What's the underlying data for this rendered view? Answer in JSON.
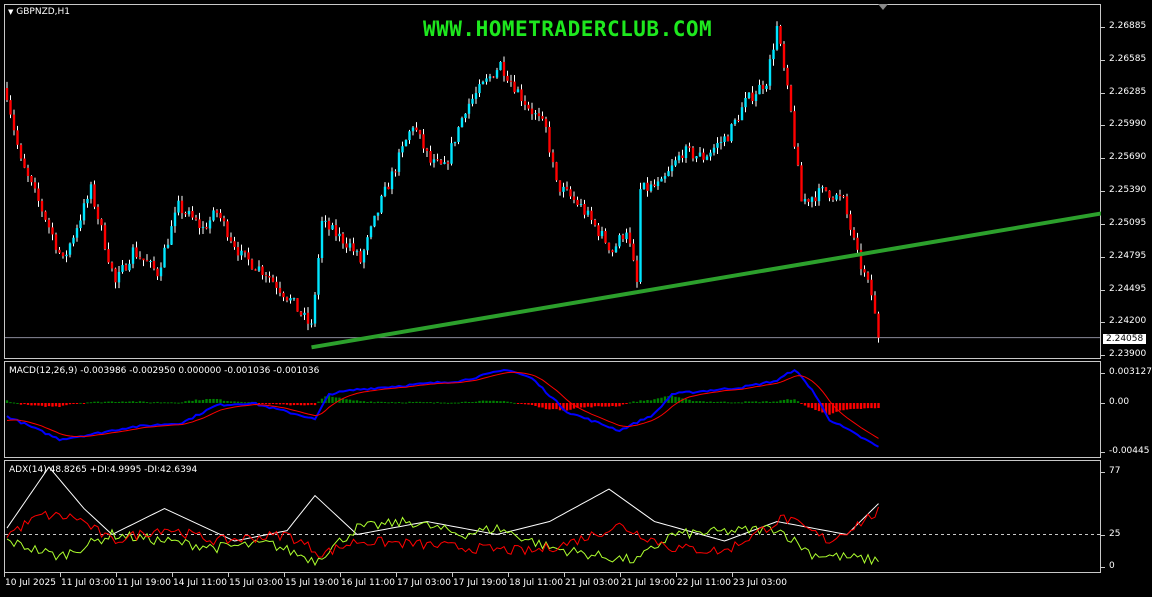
{
  "symbol_title": "GBPNZD,H1",
  "watermark": "WWW.HOMETRADERCLUB.COM",
  "colors": {
    "bull": "#00e5ff",
    "bear": "#ff0000",
    "trendline": "#2ca02c",
    "macd_main": "#0000ff",
    "macd_signal": "#ff0000",
    "hist_pos": "#008000",
    "hist_neg": "#ff0000",
    "adx": "#ffffff",
    "plus_di": "#adff2f",
    "minus_di": "#ff0000",
    "watermark": "#1ee81e"
  },
  "current_price": "2.24058",
  "price_axis": [
    "2.26885",
    "2.26585",
    "2.26285",
    "2.25990",
    "2.25690",
    "2.25390",
    "2.25095",
    "2.24795",
    "2.24495",
    "2.24200",
    "2.23900"
  ],
  "time_axis": [
    "10 Jul 2025",
    "11 Jul 03:00",
    "11 Jul 19:00",
    "14 Jul 11:00",
    "15 Jul 03:00",
    "15 Jul 19:00",
    "16 Jul 11:00",
    "17 Jul 03:00",
    "17 Jul 19:00",
    "18 Jul 11:00",
    "21 Jul 03:00",
    "21 Jul 19:00",
    "22 Jul 11:00",
    "23 Jul 03:00"
  ],
  "macd": {
    "label": "MACD(12,26,9) -0.003986 -0.002950 0.000000 -0.001036 -0.001036",
    "axis": [
      "0.003127",
      "0.00",
      "-0.00445"
    ]
  },
  "adx": {
    "label": "ADX(14) 48.8265 +DI:4.9995 -DI:42.6394",
    "axis": [
      "77",
      "25",
      "0"
    ]
  },
  "chart_data": {
    "type": "candlestick",
    "timeframe": "H1",
    "price_range": [
      2.239,
      2.26885
    ],
    "close_anchors": [
      [
        0,
        2.2628
      ],
      [
        4,
        2.2565
      ],
      [
        11,
        2.2515
      ],
      [
        16,
        2.2475
      ],
      [
        24,
        2.254
      ],
      [
        31,
        2.2455
      ],
      [
        36,
        2.2485
      ],
      [
        43,
        2.2465
      ],
      [
        49,
        2.2525
      ],
      [
        56,
        2.2505
      ],
      [
        60,
        2.252
      ],
      [
        67,
        2.248
      ],
      [
        74,
        2.2465
      ],
      [
        81,
        2.244
      ],
      [
        87,
        2.2415
      ],
      [
        90,
        2.251
      ],
      [
        98,
        2.249
      ],
      [
        101,
        2.2475
      ],
      [
        107,
        2.253
      ],
      [
        116,
        2.26
      ],
      [
        121,
        2.2565
      ],
      [
        125,
        2.256
      ],
      [
        131,
        2.2615
      ],
      [
        141,
        2.2655
      ],
      [
        147,
        2.2625
      ],
      [
        154,
        2.2595
      ],
      [
        157,
        2.2545
      ],
      [
        164,
        2.2525
      ],
      [
        173,
        2.2485
      ],
      [
        177,
        2.2505
      ],
      [
        180,
        2.2455
      ],
      [
        181,
        2.254
      ],
      [
        187,
        2.2545
      ],
      [
        193,
        2.2575
      ],
      [
        199,
        2.257
      ],
      [
        206,
        2.259
      ],
      [
        211,
        2.262
      ],
      [
        217,
        2.264
      ],
      [
        220,
        2.2688
      ],
      [
        224,
        2.261
      ],
      [
        227,
        2.253
      ],
      [
        234,
        2.254
      ],
      [
        239,
        2.253
      ],
      [
        243,
        2.248
      ],
      [
        247,
        2.2445
      ],
      [
        249,
        2.24058
      ]
    ],
    "trendline": [
      [
        87,
        2.2397
      ],
      [
        313,
        2.2519
      ]
    ],
    "macd_main_anchors": [
      [
        0,
        -0.0012
      ],
      [
        15,
        -0.0033
      ],
      [
        25,
        -0.0028
      ],
      [
        35,
        -0.0022
      ],
      [
        50,
        -0.0018
      ],
      [
        60,
        -0.0002
      ],
      [
        70,
        0.0
      ],
      [
        85,
        -0.0012
      ],
      [
        88,
        -0.0015
      ],
      [
        92,
        0.0008
      ],
      [
        100,
        0.0012
      ],
      [
        115,
        0.0016
      ],
      [
        130,
        0.002
      ],
      [
        143,
        0.003
      ],
      [
        150,
        0.0022
      ],
      [
        160,
        -0.0008
      ],
      [
        175,
        -0.0025
      ],
      [
        185,
        -0.001
      ],
      [
        190,
        0.0008
      ],
      [
        210,
        0.0014
      ],
      [
        220,
        0.002
      ],
      [
        225,
        0.003
      ],
      [
        230,
        0.0012
      ],
      [
        235,
        -0.0015
      ],
      [
        249,
        -0.004
      ]
    ],
    "macd_range": [
      -0.00445,
      0.003127
    ],
    "adx_anchors": [
      [
        0,
        30
      ],
      [
        12,
        77
      ],
      [
        22,
        45
      ],
      [
        30,
        25
      ],
      [
        45,
        45
      ],
      [
        65,
        20
      ],
      [
        80,
        28
      ],
      [
        88,
        55
      ],
      [
        100,
        25
      ],
      [
        120,
        35
      ],
      [
        140,
        25
      ],
      [
        155,
        35
      ],
      [
        172,
        60
      ],
      [
        185,
        35
      ],
      [
        205,
        20
      ],
      [
        220,
        35
      ],
      [
        240,
        25
      ],
      [
        249,
        48.8
      ]
    ],
    "plus_di_anchors": [
      [
        0,
        20
      ],
      [
        15,
        8
      ],
      [
        30,
        25
      ],
      [
        45,
        20
      ],
      [
        60,
        15
      ],
      [
        75,
        18
      ],
      [
        88,
        5
      ],
      [
        100,
        30
      ],
      [
        115,
        35
      ],
      [
        130,
        25
      ],
      [
        140,
        30
      ],
      [
        155,
        15
      ],
      [
        170,
        8
      ],
      [
        180,
        5
      ],
      [
        190,
        25
      ],
      [
        210,
        28
      ],
      [
        220,
        30
      ],
      [
        230,
        10
      ],
      [
        249,
        5
      ]
    ],
    "minus_di_anchors": [
      [
        0,
        25
      ],
      [
        10,
        40
      ],
      [
        20,
        38
      ],
      [
        30,
        20
      ],
      [
        45,
        30
      ],
      [
        60,
        20
      ],
      [
        80,
        25
      ],
      [
        90,
        10
      ],
      [
        100,
        20
      ],
      [
        115,
        18
      ],
      [
        130,
        15
      ],
      [
        150,
        12
      ],
      [
        160,
        18
      ],
      [
        175,
        32
      ],
      [
        190,
        15
      ],
      [
        205,
        12
      ],
      [
        222,
        38
      ],
      [
        235,
        20
      ],
      [
        249,
        42.6
      ]
    ],
    "adx_range": [
      0,
      77
    ],
    "adx_level": 25
  }
}
